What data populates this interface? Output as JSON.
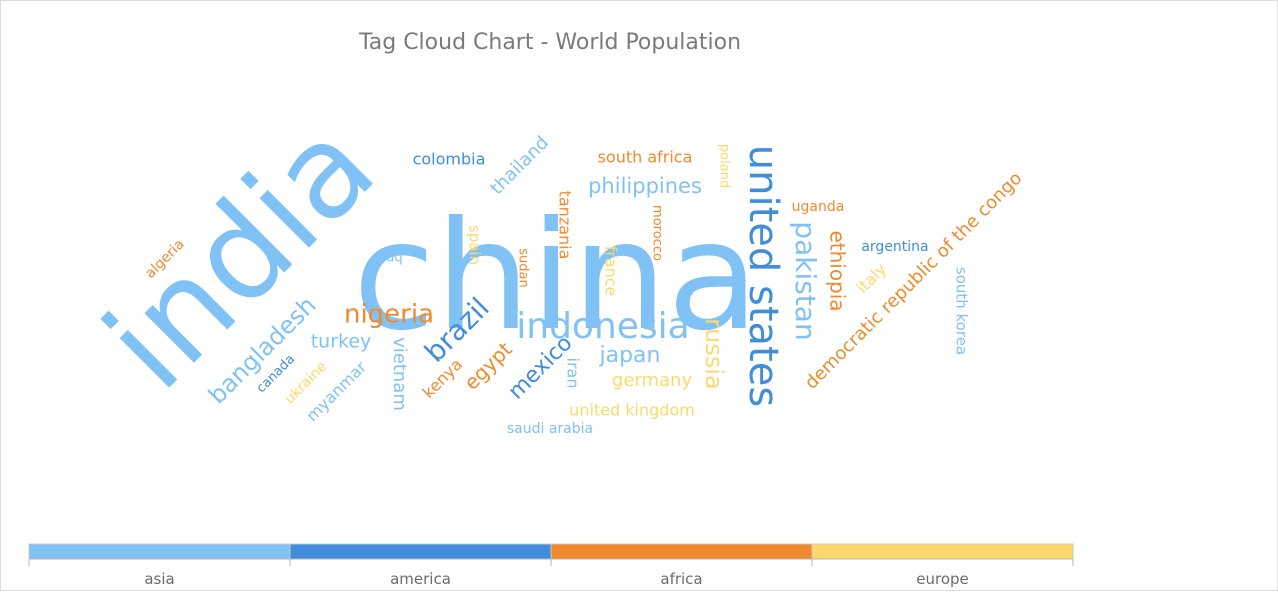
{
  "chart_data": {
    "type": "tag-cloud",
    "title": "Tag Cloud Chart - World Population",
    "legend": {
      "placement": "bottom",
      "categories": [
        {
          "name": "asia",
          "color": "#80c2f5"
        },
        {
          "name": "america",
          "color": "#3f8ddb"
        },
        {
          "name": "africa",
          "color": "#f08a2c"
        },
        {
          "name": "europe",
          "color": "#fdd96b"
        }
      ]
    },
    "tags": [
      {
        "text": "china",
        "category": "asia",
        "value": 1407
      },
      {
        "text": "india",
        "category": "asia",
        "value": 1350
      },
      {
        "text": "united states",
        "category": "america",
        "value": 331
      },
      {
        "text": "indonesia",
        "category": "asia",
        "value": 271
      },
      {
        "text": "pakistan",
        "category": "asia",
        "value": 220
      },
      {
        "text": "brazil",
        "category": "america",
        "value": 212
      },
      {
        "text": "nigeria",
        "category": "africa",
        "value": 206
      },
      {
        "text": "bangladesh",
        "category": "asia",
        "value": 165
      },
      {
        "text": "russia",
        "category": "europe",
        "value": 146
      },
      {
        "text": "mexico",
        "category": "america",
        "value": 128
      },
      {
        "text": "japan",
        "category": "asia",
        "value": 126
      },
      {
        "text": "ethiopia",
        "category": "africa",
        "value": 115
      },
      {
        "text": "philippines",
        "category": "asia",
        "value": 110
      },
      {
        "text": "egypt",
        "category": "africa",
        "value": 102
      },
      {
        "text": "vietnam",
        "category": "asia",
        "value": 97
      },
      {
        "text": "democratic republic of the congo",
        "category": "africa",
        "value": 90
      },
      {
        "text": "turkey",
        "category": "asia",
        "value": 84
      },
      {
        "text": "iran",
        "category": "asia",
        "value": 84
      },
      {
        "text": "germany",
        "category": "europe",
        "value": 83
      },
      {
        "text": "thailand",
        "category": "asia",
        "value": 70
      },
      {
        "text": "united kingdom",
        "category": "europe",
        "value": 67
      },
      {
        "text": "france",
        "category": "europe",
        "value": 65
      },
      {
        "text": "italy",
        "category": "europe",
        "value": 60
      },
      {
        "text": "tanzania",
        "category": "africa",
        "value": 60
      },
      {
        "text": "south africa",
        "category": "africa",
        "value": 59
      },
      {
        "text": "myanmar",
        "category": "asia",
        "value": 54
      },
      {
        "text": "kenya",
        "category": "africa",
        "value": 54
      },
      {
        "text": "south korea",
        "category": "asia",
        "value": 52
      },
      {
        "text": "colombia",
        "category": "america",
        "value": 51
      },
      {
        "text": "spain",
        "category": "europe",
        "value": 47
      },
      {
        "text": "uganda",
        "category": "africa",
        "value": 46
      },
      {
        "text": "argentina",
        "category": "america",
        "value": 45
      },
      {
        "text": "algeria",
        "category": "africa",
        "value": 44
      },
      {
        "text": "sudan",
        "category": "africa",
        "value": 44
      },
      {
        "text": "ukraine",
        "category": "europe",
        "value": 44
      },
      {
        "text": "iraq",
        "category": "asia",
        "value": 40
      },
      {
        "text": "canada",
        "category": "america",
        "value": 38
      },
      {
        "text": "poland",
        "category": "europe",
        "value": 38
      },
      {
        "text": "morocco",
        "category": "africa",
        "value": 37
      },
      {
        "text": "saudi arabia",
        "category": "asia",
        "value": 35
      }
    ]
  }
}
